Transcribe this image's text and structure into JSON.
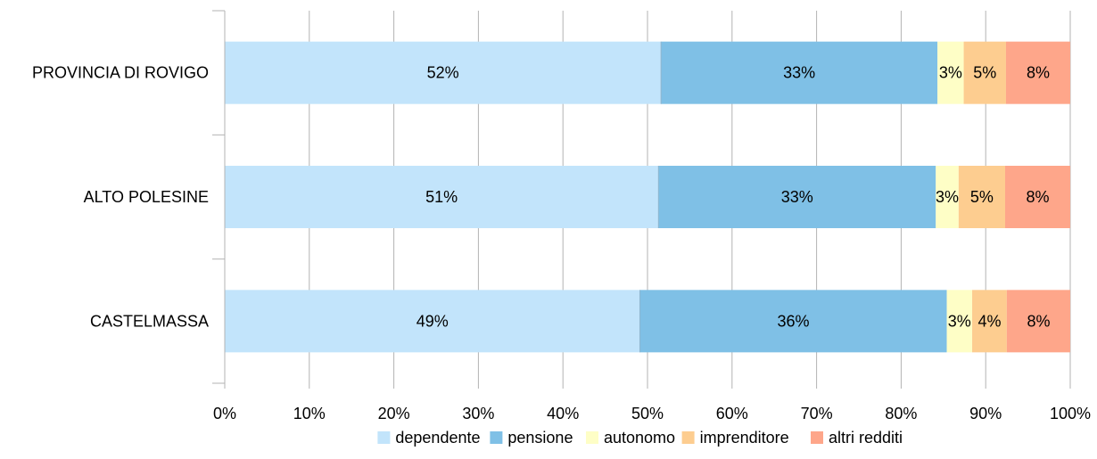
{
  "chart_data": {
    "type": "bar",
    "orientation": "horizontal",
    "stacking": "percent",
    "categories": [
      "PROVINCIA DI ROVIGO",
      "ALTO POLESINE",
      "CASTELMASSA"
    ],
    "series": [
      {
        "name": "dependente",
        "values": [
          51.6,
          51.3,
          49.1
        ],
        "labels": [
          "52%",
          "51%",
          "49%"
        ],
        "color": "#c2e4fb"
      },
      {
        "name": "pensione",
        "values": [
          32.7,
          32.8,
          36.3
        ],
        "labels": [
          "33%",
          "33%",
          "36%"
        ],
        "color": "#7fc0e6"
      },
      {
        "name": "autonomo",
        "values": [
          3.1,
          2.7,
          3.0
        ],
        "labels": [
          "3%",
          "3%",
          "3%"
        ],
        "color": "#fefec6"
      },
      {
        "name": "imprenditore",
        "values": [
          5.0,
          5.5,
          4.1
        ],
        "labels": [
          "5%",
          "5%",
          "4%"
        ],
        "color": "#fdcd90"
      },
      {
        "name": "altri redditi",
        "values": [
          7.6,
          7.7,
          7.5
        ],
        "labels": [
          "8%",
          "8%",
          "8%"
        ],
        "color": "#fea68a"
      }
    ],
    "xlim": [
      0,
      100
    ],
    "xticks": [
      "0%",
      "10%",
      "20%",
      "30%",
      "40%",
      "50%",
      "60%",
      "70%",
      "80%",
      "90%",
      "100%"
    ],
    "grid": "vertical",
    "legend": "bottom"
  }
}
